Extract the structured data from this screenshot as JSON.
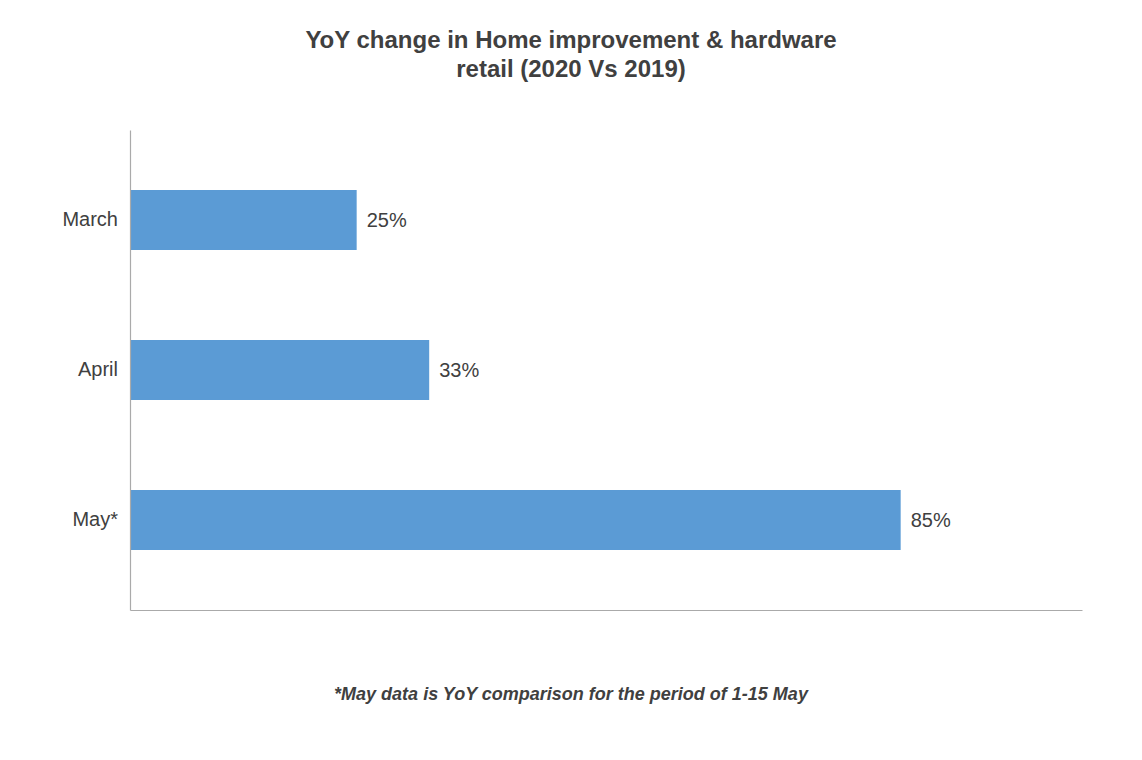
{
  "chart_data": {
    "type": "bar",
    "orientation": "horizontal",
    "title": "YoY change in Home improvement & hardware\nretail (2020 Vs 2019)",
    "categories": [
      "May*",
      "April",
      "March"
    ],
    "values": [
      85,
      33,
      25
    ],
    "value_labels": [
      "85%",
      "33%",
      "25%"
    ],
    "data_labels": true,
    "color": "#5B9BD5",
    "xlim": [
      0,
      105
    ],
    "tick_labels": "y",
    "grid": false,
    "annotations": [
      "*May data is YoY comparison for the period of 1-15 May"
    ]
  }
}
